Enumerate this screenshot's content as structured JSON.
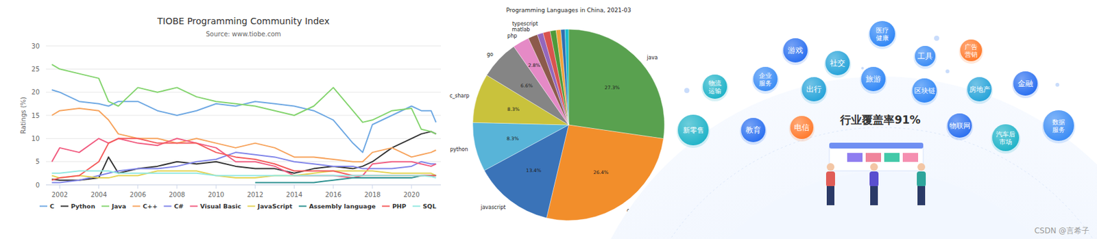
{
  "chart_data": [
    {
      "type": "line",
      "title": "TIOBE Programming Community Index",
      "subtitle": "Source: www.tiobe.com",
      "y_label": "Ratings (%)",
      "x": [
        2001.6,
        2002,
        2003,
        2004,
        2004.5,
        2005,
        2006,
        2007,
        2008,
        2009,
        2010,
        2011,
        2012,
        2013,
        2014,
        2015,
        2016,
        2017,
        2017.5,
        2018,
        2019,
        2020,
        2020.5,
        2021,
        2021.25
      ],
      "xlim": [
        2001.3,
        2021.5
      ],
      "xticks": [
        2002,
        2004,
        2006,
        2008,
        2010,
        2012,
        2014,
        2016,
        2018,
        2020
      ],
      "ylim": [
        0,
        30
      ],
      "yticks": [
        0,
        5,
        10,
        15,
        20,
        25,
        30
      ],
      "grid": true,
      "legend": "bottom",
      "series": [
        {
          "name": "C",
          "color": "#6ea8e3",
          "values": [
            20.5,
            20,
            18,
            17.5,
            17,
            18,
            18,
            16,
            15,
            16,
            17.5,
            17,
            18,
            17.5,
            17,
            16,
            14,
            9,
            7,
            13,
            15,
            17,
            16,
            16,
            13.5
          ]
        },
        {
          "name": "Python",
          "color": "#333333",
          "values": [
            1.2,
            1,
            1,
            1.5,
            6,
            2.5,
            3.5,
            4,
            5,
            4.5,
            5,
            4,
            3.5,
            3.5,
            2.5,
            3.5,
            4,
            3.5,
            4,
            5,
            8,
            10,
            11,
            11.5,
            11
          ]
        },
        {
          "name": "Java",
          "color": "#84d46e",
          "values": [
            26,
            25,
            24,
            23,
            18,
            17,
            21,
            20,
            21,
            19,
            18,
            17.5,
            17,
            16,
            15,
            17,
            21,
            16,
            13.5,
            14,
            16,
            16.5,
            12,
            11.5,
            11
          ]
        },
        {
          "name": "C++",
          "color": "#f7a35c",
          "values": [
            15,
            16,
            16.5,
            16,
            14,
            11,
            10,
            10,
            9,
            10,
            9,
            8,
            9,
            8,
            6,
            6,
            5.5,
            5,
            5,
            7,
            8,
            6,
            6.5,
            7,
            7.5
          ]
        },
        {
          "name": "C#",
          "color": "#8085e9",
          "values": [
            0.5,
            0.5,
            1,
            2,
            2.5,
            3,
            3.5,
            3.5,
            4,
            5,
            5.5,
            7,
            6.5,
            6,
            5,
            4.5,
            4,
            4,
            3.5,
            3.5,
            3.5,
            4,
            5,
            4.5,
            4.5
          ]
        },
        {
          "name": "Visual Basic",
          "color": "#f15c80",
          "values": [
            5,
            8,
            7,
            10,
            9,
            10,
            9,
            8.5,
            10,
            9,
            8,
            5,
            5,
            4,
            2,
            2,
            2,
            1.5,
            2,
            4.5,
            5,
            5,
            4.5,
            4,
            4.5
          ]
        },
        {
          "name": "JavaScript",
          "color": "#e4d354",
          "values": [
            2,
            1.5,
            2,
            1.5,
            1.5,
            2,
            2,
            3,
            3,
            3,
            2,
            1.5,
            1.5,
            2,
            2,
            2.5,
            3,
            3,
            3,
            3,
            2.5,
            2.5,
            2.5,
            2.5,
            2
          ]
        },
        {
          "name": "Assembly language",
          "color": "#2b908f",
          "values": [
            null,
            null,
            null,
            null,
            null,
            null,
            null,
            null,
            null,
            null,
            null,
            null,
            0.5,
            0.5,
            0.5,
            0.5,
            1,
            1.5,
            1.5,
            1.5,
            1.5,
            1.5,
            2,
            2,
            2
          ]
        },
        {
          "name": "PHP",
          "color": "#f45b5b",
          "values": [
            1,
            1.5,
            2,
            5,
            9,
            10,
            10,
            9,
            9,
            9,
            7,
            6,
            5.5,
            4.5,
            3,
            3,
            3,
            2,
            2,
            2,
            2,
            2,
            2,
            2,
            2
          ]
        },
        {
          "name": "SQL",
          "color": "#91e8e1",
          "values": [
            2.5,
            2.5,
            3,
            3,
            3,
            2.5,
            2.5,
            2.5,
            2.5,
            2.5,
            2,
            2,
            2,
            2,
            2,
            2,
            2,
            2,
            2,
            2,
            2,
            2,
            2,
            1.8,
            1.5
          ]
        }
      ]
    },
    {
      "type": "pie",
      "title": "Programming Languages in China, 2021-03",
      "categories": [
        "java",
        "cpp",
        "javascript",
        "python",
        "c_sharp",
        "go",
        "php",
        "matlab",
        "typescript",
        null,
        null,
        null,
        null,
        null
      ],
      "values": [
        27.3,
        26.4,
        13.4,
        8.3,
        8.3,
        6.6,
        2.8,
        1.6,
        1.0,
        1.2,
        1.0,
        0.8,
        0.7,
        0.6
      ],
      "value_labels": [
        "27.3%",
        "26.4%",
        "13.4%",
        "8.3%",
        "8.3%",
        "6.6%",
        "2.8%",
        null,
        null,
        null,
        null,
        null,
        null,
        null
      ],
      "colors": [
        "#59a14f",
        "#f28e2b",
        "#3a73b8",
        "#58b4d8",
        "#c9c23c",
        "#858585",
        "#e58ac6",
        "#8c5a4b",
        "#9467bd",
        "#d9534f",
        "#4f9a3a",
        "#f0a23b",
        "#2f6fb0",
        "#17becf"
      ],
      "data_labels": true
    }
  ],
  "infographic": {
    "title": "行业覆盖率91%",
    "industries": [
      {
        "label": [
          "医疗",
          "健康"
        ],
        "color": "#2f86f6"
      },
      {
        "label": [
          "游戏"
        ],
        "color": "#2a6ff0"
      },
      {
        "label": [
          "工具"
        ],
        "color": "#3b8cf5"
      },
      {
        "label": [
          "广告",
          "营销"
        ],
        "color": "#ff7a2c"
      },
      {
        "label": [
          "社交"
        ],
        "color": "#25a3d9"
      },
      {
        "label": [
          "企业",
          "服务"
        ],
        "color": "#3b8cf5"
      },
      {
        "label": [
          "物流",
          "运输"
        ],
        "color": "#1fb3c8"
      },
      {
        "label": [
          "旅游"
        ],
        "color": "#2f86f6"
      },
      {
        "label": [
          "出行"
        ],
        "color": "#25a3d9"
      },
      {
        "label": [
          "区块链"
        ],
        "color": "#2f86f6"
      },
      {
        "label": [
          "房地产"
        ],
        "color": "#25a3d9"
      },
      {
        "label": [
          "金融"
        ],
        "color": "#2a6ff0"
      },
      {
        "label": [
          "新零售"
        ],
        "color": "#1fb3c8"
      },
      {
        "label": [
          "教育"
        ],
        "color": "#2a6ff0"
      },
      {
        "label": [
          "电信"
        ],
        "color": "#ff7a2c"
      },
      {
        "label": [
          "物联网"
        ],
        "color": "#2a6ff0"
      },
      {
        "label": [
          "汽车后",
          "市场"
        ],
        "color": "#1fb3c8"
      },
      {
        "label": [
          "数据",
          "服务"
        ],
        "color": "#3b8cf5"
      }
    ]
  },
  "watermark": "CSDN @言希子"
}
